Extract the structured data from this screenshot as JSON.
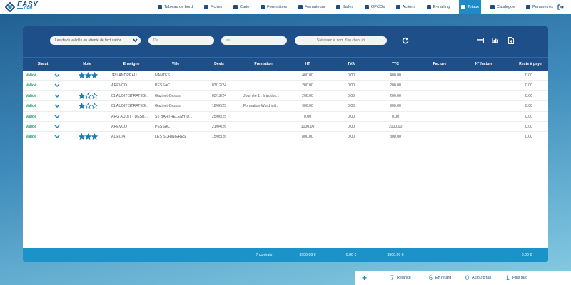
{
  "header": {
    "logo": "EASY",
    "logo_sub": "CRM"
  },
  "nav": {
    "items": [
      {
        "label": "Tableau de bord"
      },
      {
        "label": "Fiches"
      },
      {
        "label": "Carte"
      },
      {
        "label": "Formations"
      },
      {
        "label": "Formateurs"
      },
      {
        "label": "Salles"
      },
      {
        "label": "OPCOs"
      },
      {
        "label": "Actions"
      },
      {
        "label": "E-mailing"
      },
      {
        "label": "Totaux",
        "active": true
      },
      {
        "label": "Catalogue"
      },
      {
        "label": "Paramètres"
      }
    ]
  },
  "filters": {
    "status": "Les devis validés en attente de facturation",
    "date_from": "Du",
    "date_to": "au",
    "client": "Saisissez le nom d'un client ici"
  },
  "table": {
    "columns": [
      "Statut",
      "Note",
      "Enseigne",
      "Ville",
      "Devis",
      "Prestation",
      "HT",
      "TVA",
      "TTC",
      "Facture",
      "N° facture",
      "Reste à payer"
    ],
    "rows": [
      {
        "statut": "Validé",
        "note": 3,
        "enseigne": "JP LANDREAU",
        "ville": "NANTES",
        "ht": "400.00",
        "tva": "0.00",
        "ttc": "400.00",
        "reste": "0.00"
      },
      {
        "statut": "Validé",
        "enseigne": "AREVCO",
        "ville": "PESSAC",
        "devis": "03/12/24",
        "ht": "200.00",
        "tva": "0.00",
        "ttc": "200.00",
        "reste": "0.00"
      },
      {
        "statut": "Validé",
        "note": 1,
        "enseigne": "01 AUDIT STRATEG...",
        "ville": "Gazinet-Cestas",
        "devis": "05/12/24",
        "prestation": "Journée 1 : Introduc...",
        "ht": "200.00",
        "tva": "0.00",
        "ttc": "200.00",
        "reste": "0.00"
      },
      {
        "statut": "Validé",
        "note": 1,
        "enseigne": "01 AUDIT STRATEG...",
        "ville": "Gazinet-Cestas",
        "devis": "18/06/25",
        "prestation": "Formation Word init...",
        "ht": "900.00",
        "tva": "0.00",
        "ttc": "900.00",
        "reste": "0.00"
      },
      {
        "statut": "Validé",
        "enseigne": "ARG AUDIT - DESB...",
        "ville": "ST BARTHELEMY D...",
        "devis": "25/06/25",
        "ht": "0.00",
        "tva": "0.00",
        "ttc": "0.00",
        "reste": "0.00"
      },
      {
        "statut": "Validé",
        "enseigne": "AREVCO",
        "ville": "PESSAC",
        "devis": "21/04/26",
        "ht": "1000.00",
        "tva": "0.00",
        "ttc": "1000.00",
        "reste": "0.00"
      },
      {
        "statut": "Validé",
        "note": 3,
        "enseigne": "ADECIA",
        "ville": "LES SORINIERES",
        "devis": "15/05/26",
        "ht": "800.00",
        "tva": "0.00",
        "ttc": "800.00",
        "reste": "0.00"
      }
    ],
    "footer": {
      "contrats": "7 contrats",
      "ht": "3500.00 €",
      "tva": "0.00 €",
      "ttc": "3500.00 €",
      "reste": "0.00 €"
    }
  },
  "reminders": [
    {
      "count": 7,
      "label": "Relance"
    },
    {
      "count": 6,
      "label": "En retard"
    },
    {
      "count": 0,
      "label": "Aujourd'hui"
    },
    {
      "count": 1,
      "label": "Plus tard"
    }
  ]
}
